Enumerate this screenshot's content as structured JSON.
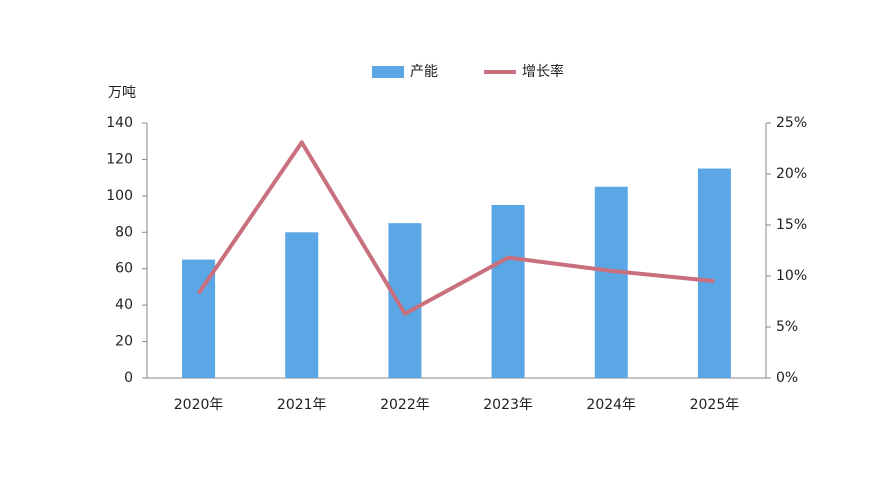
{
  "chart_data": {
    "type": "bar-line",
    "y_label": "万吨",
    "categories": [
      "2020年",
      "2021年",
      "2022年",
      "2023年",
      "2024年",
      "2025年"
    ],
    "series": [
      {
        "name": "产能",
        "type": "bar",
        "color": "#5ba7e6",
        "values": [
          65,
          80,
          85,
          95,
          105,
          115
        ]
      },
      {
        "name": "增长率",
        "type": "line",
        "axis": "y2",
        "color": "#c96f7d",
        "values": [
          8.3,
          23.1,
          6.3,
          11.8,
          10.5,
          9.5
        ]
      }
    ],
    "ylim": [
      0,
      140
    ],
    "yticks": [
      0,
      20,
      40,
      60,
      80,
      100,
      120,
      140
    ],
    "y2lim": [
      0,
      25
    ],
    "y2ticks": [
      {
        "value": 0,
        "label": "0%"
      },
      {
        "value": 5,
        "label": "5%"
      },
      {
        "value": 10,
        "label": "10%"
      },
      {
        "value": 15,
        "label": "15%"
      },
      {
        "value": 20,
        "label": "20%"
      },
      {
        "value": 25,
        "label": "25%"
      }
    ],
    "legend": "top"
  }
}
